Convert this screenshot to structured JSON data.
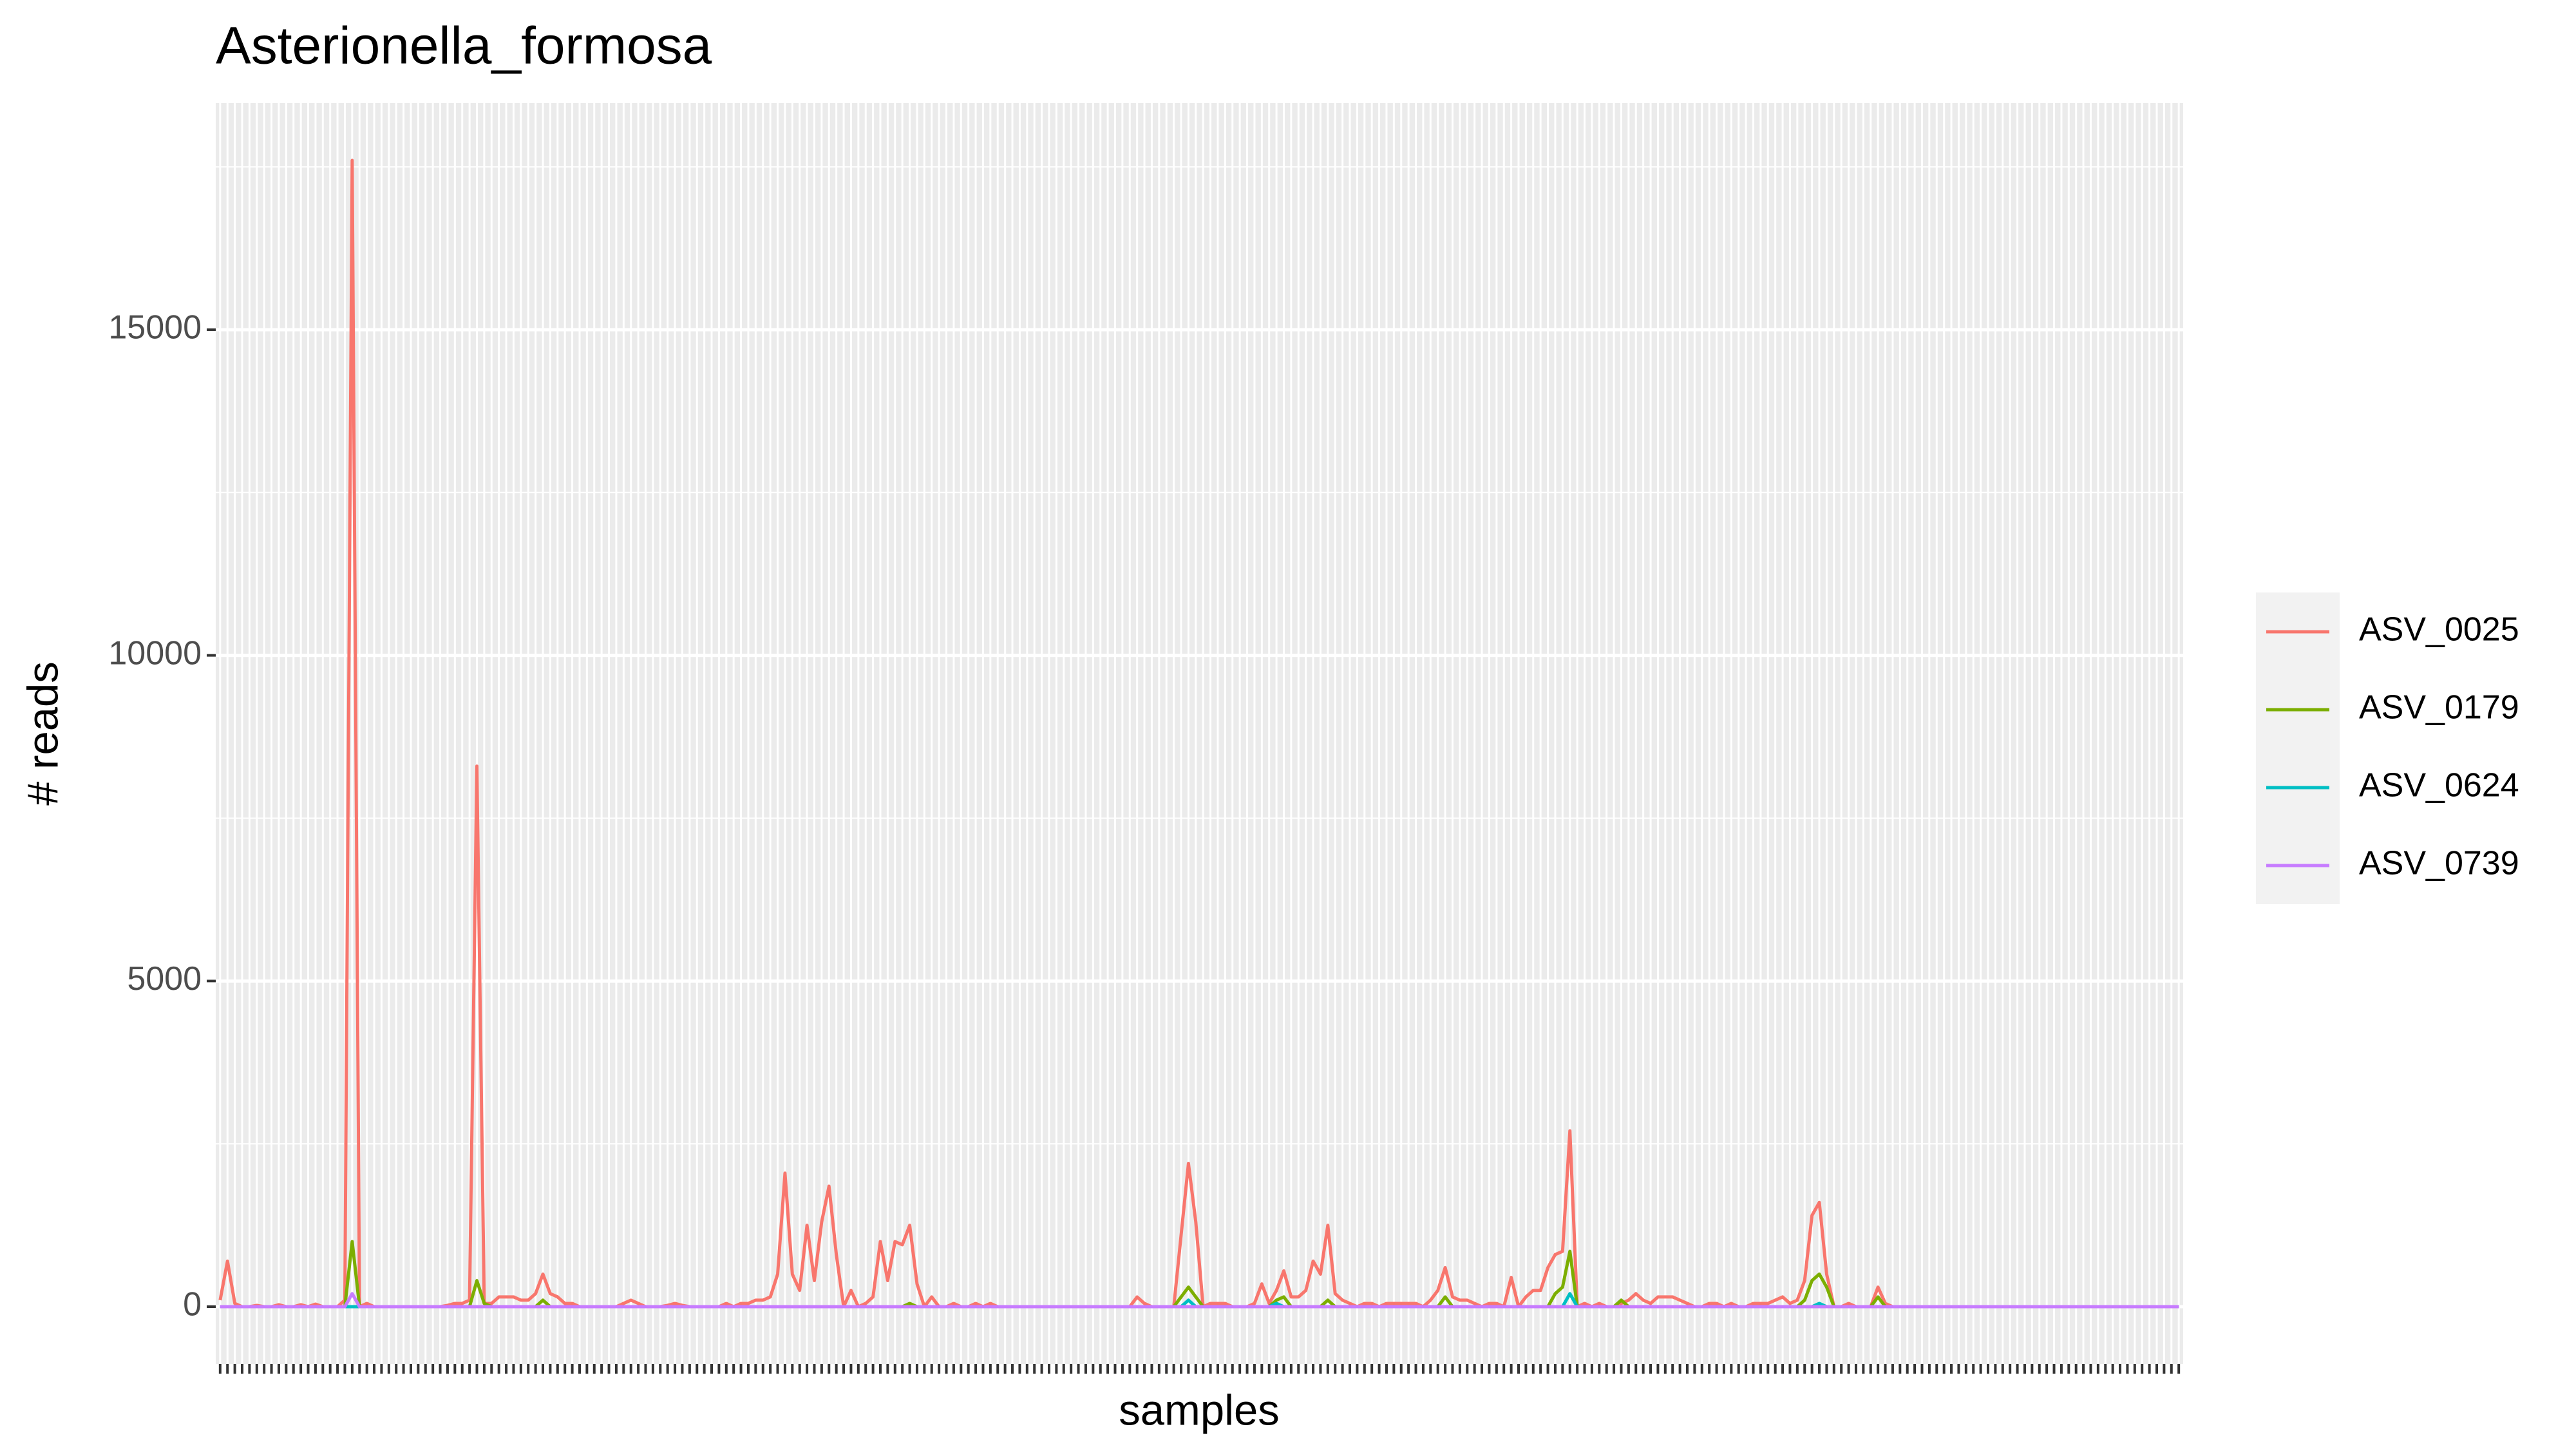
{
  "chart_data": {
    "type": "line",
    "title": "Asterionella_formosa",
    "x_label": "samples",
    "y_label": "# reads",
    "categories": [
      null,
      null,
      null,
      null,
      null,
      null,
      null,
      null,
      null,
      null,
      null,
      null,
      null,
      null,
      null,
      null,
      null,
      null,
      null,
      null,
      null,
      null,
      null,
      null,
      null,
      null,
      null,
      null,
      null,
      null,
      null,
      null,
      null,
      null,
      null,
      null,
      null,
      null,
      null,
      null,
      null,
      null,
      null,
      null,
      null,
      null,
      null,
      null,
      null,
      null,
      null,
      null,
      null,
      null,
      null,
      null,
      null,
      null,
      null,
      null,
      null,
      null,
      null,
      null,
      null,
      null,
      null,
      null,
      null,
      null,
      null,
      null,
      null,
      null,
      null,
      null,
      null,
      null,
      null,
      null,
      null,
      null,
      null,
      null,
      null,
      null,
      null,
      null,
      null,
      null,
      null,
      null,
      null,
      null,
      null,
      null,
      null,
      null,
      null,
      null,
      null,
      null,
      null,
      null,
      null,
      null,
      null,
      null,
      null,
      null,
      null,
      null,
      null,
      null,
      null,
      null,
      null,
      null,
      null,
      null,
      null,
      null,
      null,
      null,
      null,
      null,
      null,
      null,
      null,
      null,
      null,
      null,
      null,
      null,
      null,
      null,
      null,
      null,
      null,
      null,
      null,
      null,
      null,
      null,
      null,
      null,
      null,
      null,
      null,
      null,
      null,
      null,
      null,
      null,
      null,
      null,
      null,
      null,
      null,
      null,
      null,
      null,
      null,
      null,
      null,
      null,
      null,
      null,
      null,
      null,
      null,
      null,
      null,
      null,
      null,
      null,
      null,
      null,
      null,
      null,
      null,
      null,
      null,
      null,
      null,
      null,
      null,
      null,
      null,
      null,
      null,
      null,
      null,
      null,
      null,
      null,
      null,
      null,
      null,
      null,
      null,
      null,
      null,
      null,
      null,
      null,
      null,
      null,
      null,
      null,
      null,
      null,
      null,
      null,
      null,
      null,
      null,
      null,
      null,
      null,
      null,
      null,
      null,
      null,
      null,
      null,
      null,
      null,
      null,
      null,
      null,
      null,
      null,
      null,
      null,
      null,
      null,
      null,
      null,
      null,
      null,
      null,
      null,
      null,
      null,
      null,
      null,
      null,
      null,
      null,
      null,
      null,
      null,
      null,
      null,
      null,
      null,
      null,
      null,
      null,
      null,
      null,
      null,
      null,
      null,
      null,
      null,
      null
    ],
    "series": [
      {
        "name": "ASV_0025",
        "color": "#F8766D",
        "values": [
          100,
          700,
          50,
          0,
          0,
          20,
          0,
          0,
          30,
          0,
          0,
          30,
          0,
          40,
          0,
          0,
          0,
          100,
          17600,
          0,
          50,
          0,
          0,
          0,
          0,
          0,
          0,
          0,
          0,
          0,
          0,
          20,
          50,
          50,
          100,
          8300,
          50,
          50,
          150,
          150,
          150,
          100,
          100,
          200,
          500,
          200,
          150,
          50,
          50,
          0,
          0,
          0,
          0,
          0,
          0,
          50,
          100,
          50,
          0,
          0,
          0,
          20,
          50,
          20,
          0,
          0,
          0,
          0,
          0,
          50,
          0,
          50,
          50,
          100,
          100,
          150,
          500,
          2050,
          500,
          250,
          1250,
          400,
          1300,
          1850,
          800,
          0,
          250,
          0,
          50,
          150,
          1000,
          400,
          1000,
          950,
          1250,
          350,
          0,
          150,
          0,
          0,
          50,
          0,
          0,
          50,
          0,
          50,
          0,
          0,
          0,
          0,
          0,
          0,
          0,
          0,
          0,
          0,
          0,
          0,
          0,
          0,
          0,
          0,
          0,
          0,
          0,
          150,
          50,
          0,
          0,
          0,
          0,
          1100,
          2200,
          1300,
          0,
          50,
          50,
          50,
          0,
          0,
          0,
          50,
          350,
          50,
          250,
          550,
          150,
          150,
          250,
          700,
          500,
          1250,
          200,
          100,
          50,
          0,
          50,
          50,
          0,
          50,
          50,
          50,
          50,
          50,
          0,
          100,
          250,
          600,
          150,
          100,
          100,
          50,
          0,
          50,
          50,
          0,
          450,
          0,
          150,
          250,
          250,
          600,
          800,
          850,
          2700,
          0,
          50,
          0,
          50,
          0,
          0,
          50,
          100,
          200,
          100,
          50,
          150,
          150,
          150,
          100,
          50,
          0,
          0,
          50,
          50,
          0,
          50,
          0,
          0,
          50,
          50,
          50,
          100,
          150,
          50,
          100,
          400,
          1400,
          1600,
          500,
          0,
          0,
          50,
          0,
          0,
          0,
          300,
          50,
          0,
          0,
          0,
          0,
          0,
          0,
          0,
          0,
          0,
          0,
          0,
          0,
          0,
          0,
          0,
          0,
          0,
          0,
          0,
          0,
          0,
          0,
          0,
          0,
          0,
          0,
          0,
          0,
          0,
          0,
          0,
          0,
          0,
          0,
          0,
          0,
          0,
          0,
          0,
          0
        ]
      },
      {
        "name": "ASV_0179",
        "color": "#7CAE00",
        "values": [
          0,
          0,
          0,
          0,
          0,
          0,
          0,
          0,
          0,
          0,
          0,
          0,
          0,
          0,
          0,
          0,
          0,
          0,
          1000,
          0,
          0,
          0,
          0,
          0,
          0,
          0,
          0,
          0,
          0,
          0,
          0,
          0,
          0,
          0,
          0,
          400,
          50,
          0,
          0,
          0,
          0,
          0,
          0,
          0,
          100,
          0,
          0,
          0,
          0,
          0,
          0,
          0,
          0,
          0,
          0,
          0,
          0,
          0,
          0,
          0,
          0,
          0,
          0,
          0,
          0,
          0,
          0,
          0,
          0,
          0,
          0,
          0,
          0,
          0,
          0,
          0,
          0,
          0,
          0,
          0,
          0,
          0,
          0,
          0,
          0,
          0,
          0,
          0,
          0,
          0,
          0,
          0,
          0,
          0,
          50,
          0,
          0,
          0,
          0,
          0,
          0,
          0,
          0,
          0,
          0,
          0,
          0,
          0,
          0,
          0,
          0,
          0,
          0,
          0,
          0,
          0,
          0,
          0,
          0,
          0,
          0,
          0,
          0,
          0,
          0,
          0,
          0,
          0,
          0,
          0,
          0,
          150,
          300,
          150,
          0,
          0,
          0,
          0,
          0,
          0,
          0,
          0,
          0,
          0,
          100,
          150,
          0,
          0,
          0,
          0,
          0,
          100,
          0,
          0,
          0,
          0,
          0,
          0,
          0,
          0,
          0,
          0,
          0,
          0,
          0,
          0,
          0,
          150,
          0,
          0,
          0,
          0,
          0,
          0,
          0,
          0,
          0,
          0,
          0,
          0,
          0,
          0,
          200,
          300,
          850,
          0,
          0,
          0,
          0,
          0,
          0,
          100,
          0,
          0,
          0,
          0,
          0,
          0,
          0,
          0,
          0,
          0,
          0,
          0,
          0,
          0,
          0,
          0,
          0,
          0,
          0,
          0,
          0,
          0,
          0,
          0,
          100,
          400,
          500,
          300,
          0,
          0,
          0,
          0,
          0,
          0,
          150,
          0,
          0,
          0,
          0,
          0,
          0,
          0,
          0,
          0,
          0,
          0,
          0,
          0,
          0,
          0,
          0,
          0,
          0,
          0,
          0,
          0,
          0,
          0,
          0,
          0,
          0,
          0,
          0,
          0,
          0,
          0,
          0,
          0,
          0,
          0,
          0,
          0,
          0,
          0,
          0,
          0
        ]
      },
      {
        "name": "ASV_0624",
        "color": "#00BFC4",
        "values": [
          0,
          0,
          0,
          0,
          0,
          0,
          0,
          0,
          0,
          0,
          0,
          0,
          0,
          0,
          0,
          0,
          0,
          0,
          0,
          0,
          0,
          0,
          0,
          0,
          0,
          0,
          0,
          0,
          0,
          0,
          0,
          0,
          0,
          0,
          0,
          0,
          0,
          0,
          0,
          0,
          0,
          0,
          0,
          0,
          0,
          0,
          0,
          0,
          0,
          0,
          0,
          0,
          0,
          0,
          0,
          0,
          0,
          0,
          0,
          0,
          0,
          0,
          0,
          0,
          0,
          0,
          0,
          0,
          0,
          0,
          0,
          0,
          0,
          0,
          0,
          0,
          0,
          0,
          0,
          0,
          0,
          0,
          0,
          0,
          0,
          0,
          0,
          0,
          0,
          0,
          0,
          0,
          0,
          0,
          0,
          0,
          0,
          0,
          0,
          0,
          0,
          0,
          0,
          0,
          0,
          0,
          0,
          0,
          0,
          0,
          0,
          0,
          0,
          0,
          0,
          0,
          0,
          0,
          0,
          0,
          0,
          0,
          0,
          0,
          0,
          0,
          0,
          0,
          0,
          0,
          0,
          0,
          100,
          0,
          0,
          0,
          0,
          0,
          0,
          0,
          0,
          0,
          0,
          0,
          50,
          0,
          0,
          0,
          0,
          0,
          0,
          0,
          0,
          0,
          0,
          0,
          0,
          0,
          0,
          0,
          0,
          0,
          0,
          0,
          0,
          0,
          0,
          0,
          0,
          0,
          0,
          0,
          0,
          0,
          0,
          0,
          0,
          0,
          0,
          0,
          0,
          0,
          0,
          0,
          200,
          0,
          0,
          0,
          0,
          0,
          0,
          0,
          0,
          0,
          0,
          0,
          0,
          0,
          0,
          0,
          0,
          0,
          0,
          0,
          0,
          0,
          0,
          0,
          0,
          0,
          0,
          0,
          0,
          0,
          0,
          0,
          0,
          0,
          50,
          0,
          0,
          0,
          0,
          0,
          0,
          0,
          0,
          0,
          0,
          0,
          0,
          0,
          0,
          0,
          0,
          0,
          0,
          0,
          0,
          0,
          0,
          0,
          0,
          0,
          0,
          0,
          0,
          0,
          0,
          0,
          0,
          0,
          0,
          0,
          0,
          0,
          0,
          0,
          0,
          0,
          0,
          0,
          0,
          0,
          0,
          0,
          0,
          0
        ]
      },
      {
        "name": "ASV_0739",
        "color": "#C77CFF",
        "values": [
          0,
          0,
          0,
          0,
          0,
          0,
          0,
          0,
          0,
          0,
          0,
          0,
          0,
          0,
          0,
          0,
          0,
          0,
          200,
          0,
          0,
          0,
          0,
          0,
          0,
          0,
          0,
          0,
          0,
          0,
          0,
          0,
          0,
          0,
          0,
          0,
          0,
          0,
          0,
          0,
          0,
          0,
          0,
          0,
          0,
          0,
          0,
          0,
          0,
          0,
          0,
          0,
          0,
          0,
          0,
          0,
          0,
          0,
          0,
          0,
          0,
          0,
          0,
          0,
          0,
          0,
          0,
          0,
          0,
          0,
          0,
          0,
          0,
          0,
          0,
          0,
          0,
          0,
          0,
          0,
          0,
          0,
          0,
          0,
          0,
          0,
          0,
          0,
          0,
          0,
          0,
          0,
          0,
          0,
          0,
          0,
          0,
          0,
          0,
          0,
          0,
          0,
          0,
          0,
          0,
          0,
          0,
          0,
          0,
          0,
          0,
          0,
          0,
          0,
          0,
          0,
          0,
          0,
          0,
          0,
          0,
          0,
          0,
          0,
          0,
          0,
          0,
          0,
          0,
          0,
          0,
          0,
          0,
          0,
          0,
          0,
          0,
          0,
          0,
          0,
          0,
          0,
          0,
          0,
          0,
          0,
          0,
          0,
          0,
          0,
          0,
          0,
          0,
          0,
          0,
          0,
          0,
          0,
          0,
          0,
          0,
          0,
          0,
          0,
          0,
          0,
          0,
          0,
          0,
          0,
          0,
          0,
          0,
          0,
          0,
          0,
          0,
          0,
          0,
          0,
          0,
          0,
          0,
          0,
          0,
          0,
          0,
          0,
          0,
          0,
          0,
          0,
          0,
          0,
          0,
          0,
          0,
          0,
          0,
          0,
          0,
          0,
          0,
          0,
          0,
          0,
          0,
          0,
          0,
          0,
          0,
          0,
          0,
          0,
          0,
          0,
          0,
          0,
          0,
          0,
          0,
          0,
          0,
          0,
          0,
          0,
          0,
          0,
          0,
          0,
          0,
          0,
          0,
          0,
          0,
          0,
          0,
          0,
          0,
          0,
          0,
          0,
          0,
          0,
          0,
          0,
          0,
          0,
          0,
          0,
          0,
          0,
          0,
          0,
          0,
          0,
          0,
          0,
          0,
          0,
          0,
          0,
          0,
          0,
          0,
          0,
          0,
          0
        ]
      }
    ],
    "ylim": [
      -880,
      18480
    ],
    "yticks": [
      0,
      5000,
      10000,
      15000
    ],
    "grid": true,
    "legend": "right"
  }
}
